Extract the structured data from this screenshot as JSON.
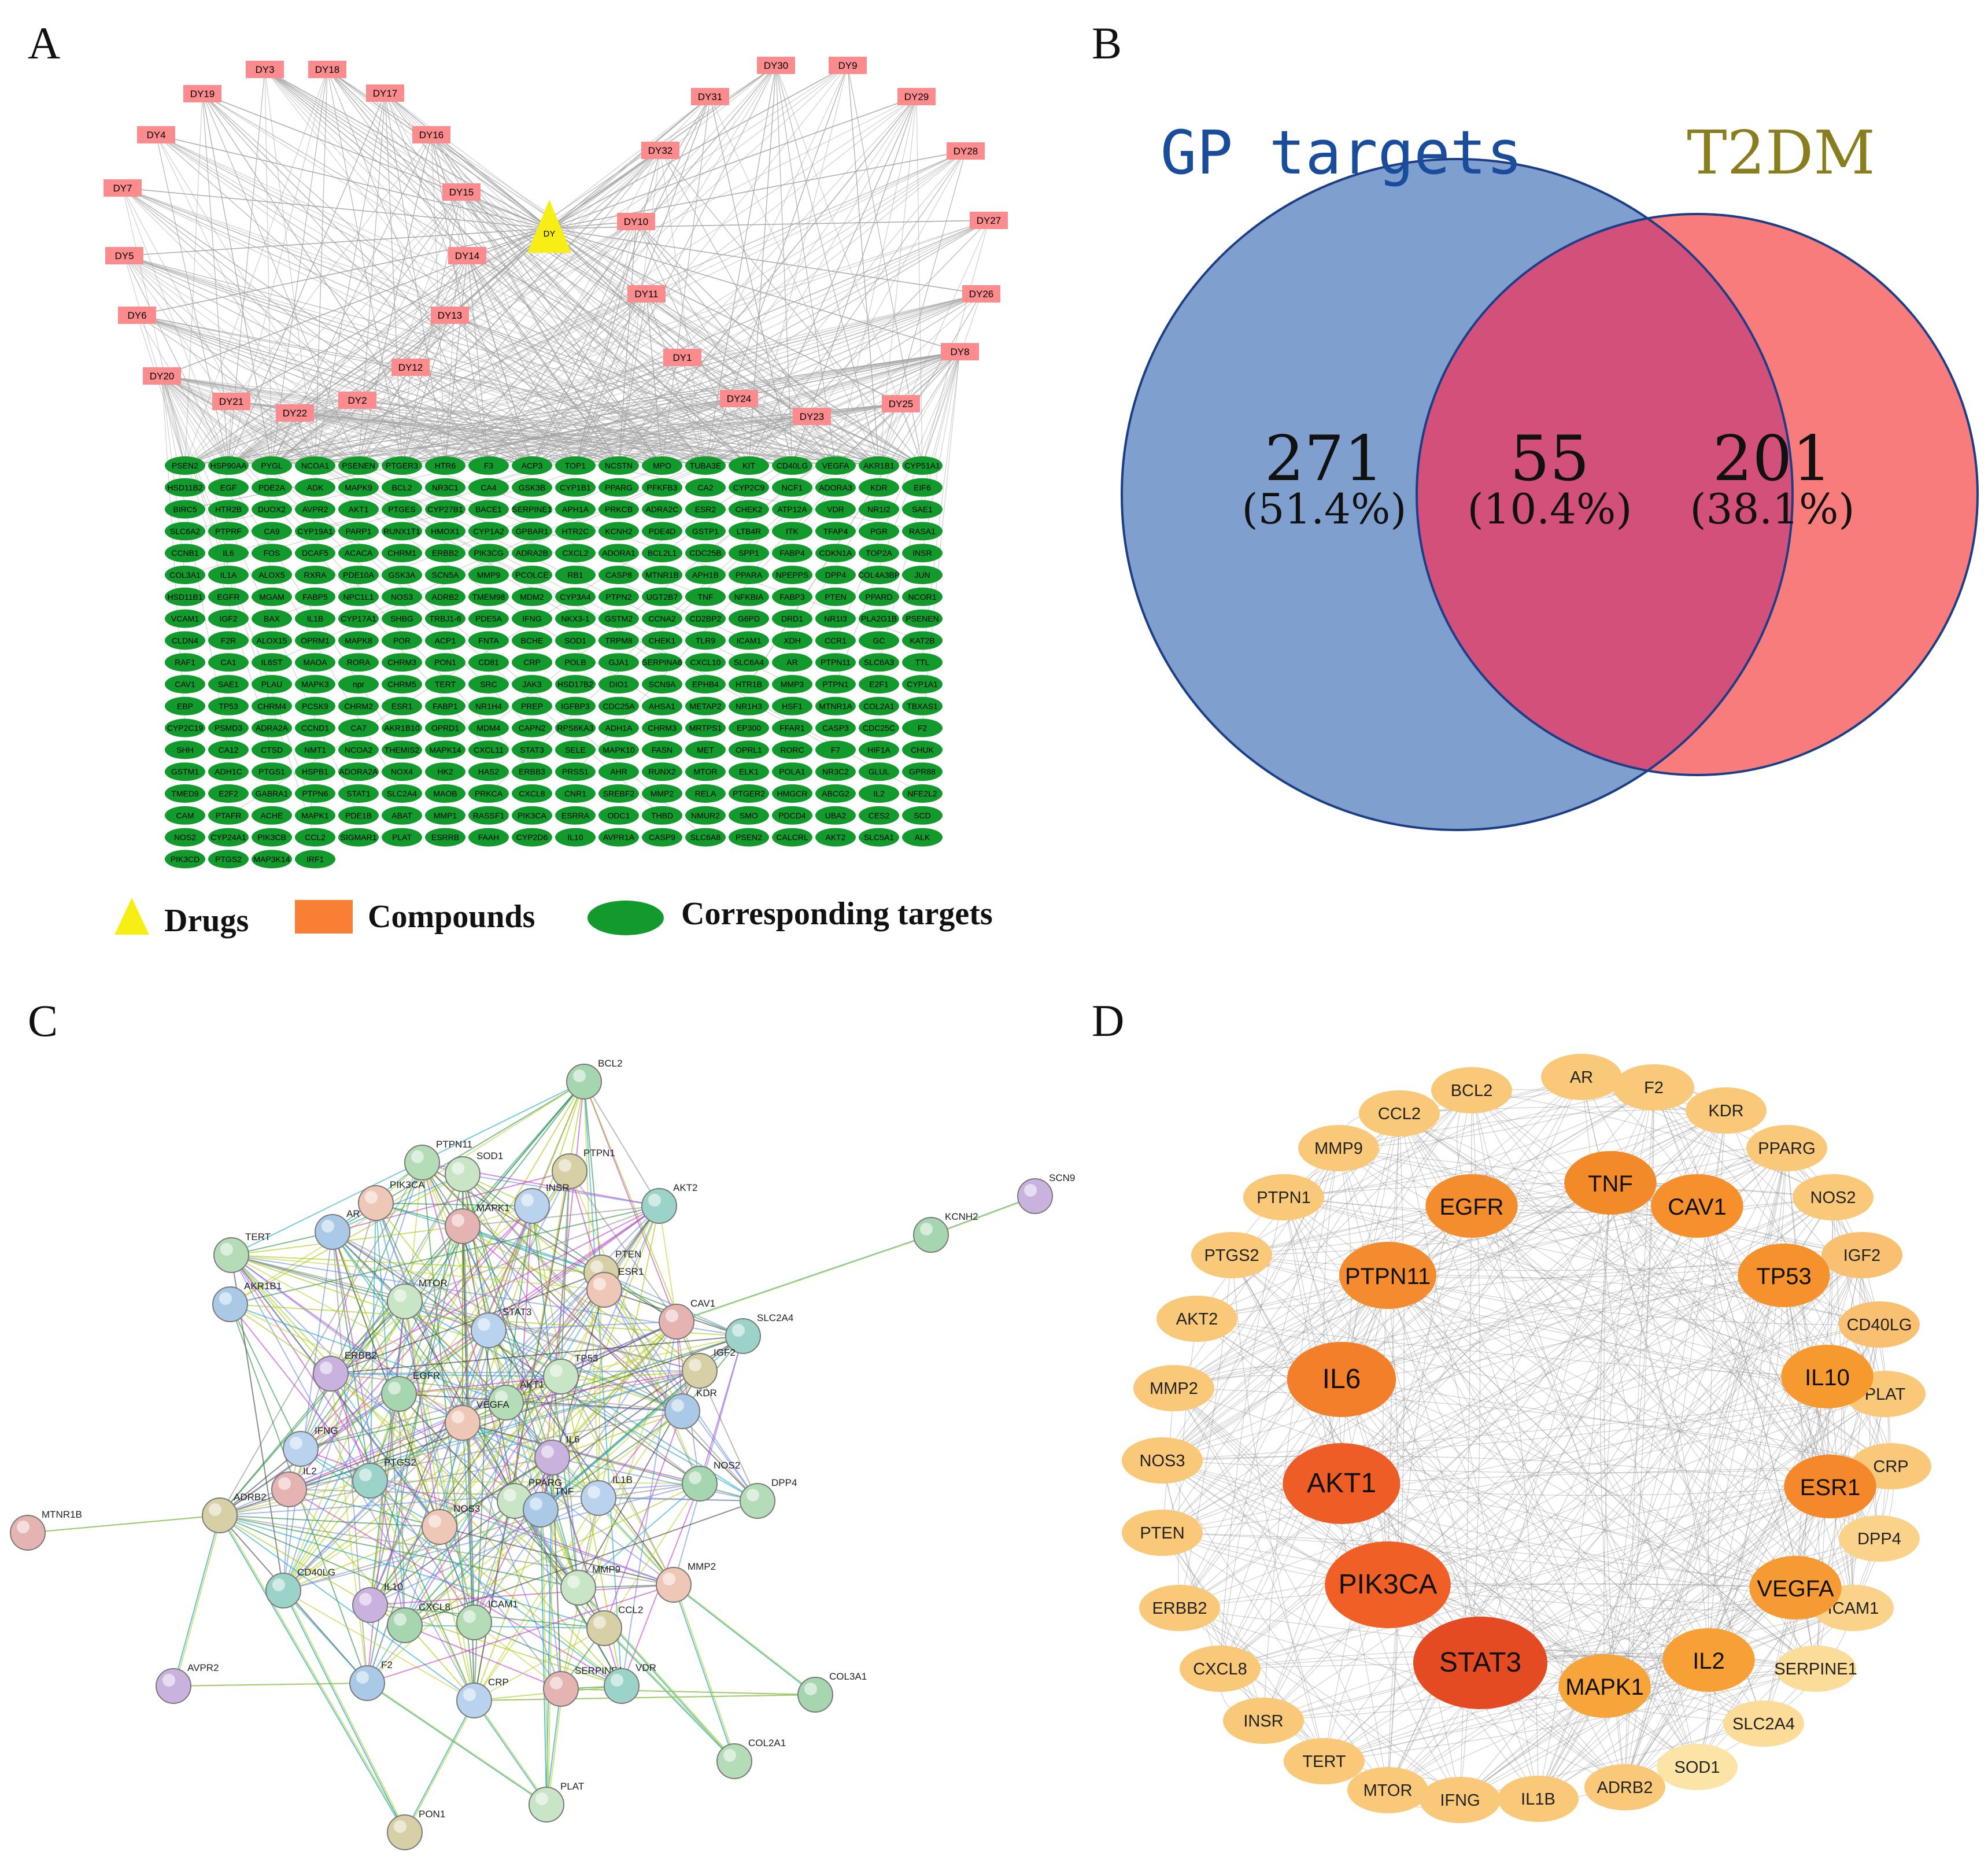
{
  "panels": {
    "a": "A",
    "b": "B",
    "c": "C",
    "d": "D"
  },
  "colors": {
    "drug": "#f7ee16",
    "compound": "#fb8b8c",
    "target": "#129a2d",
    "legend_compound": "#f97f35",
    "venn_left": "#7f9fcf",
    "venn_right": "#f97c7c",
    "venn_overlap": "#d2507a",
    "venn_left_title": "#1a4c9c",
    "venn_right_title": "#8a7d1e"
  },
  "network_a": {
    "drug_label": "DY",
    "compounds": [
      "DY19",
      "DY3",
      "DY18",
      "DY17",
      "DY16",
      "DY4",
      "DY7",
      "DY5",
      "DY6",
      "DY15",
      "DY14",
      "DY13",
      "DY12",
      "DY20",
      "DY21",
      "DY22",
      "DY2",
      "DY30",
      "DY9",
      "DY31",
      "DY29",
      "DY32",
      "DY28",
      "DY10",
      "DY27",
      "DY11",
      "DY26",
      "DY1",
      "DY8",
      "DY24",
      "DY23",
      "DY25"
    ],
    "targets": [
      [
        "PSEN2",
        "HSP90AA",
        "PYGL",
        "NCOA1",
        "PSENEN",
        "PTGER3",
        "HTR6",
        "F3",
        "ACP3",
        "TOP1",
        "NCSTN",
        "MPO",
        "TUBA3E",
        "KIT",
        "CD40LG",
        "VEGFA",
        "AKR1B1",
        "CYP51A1"
      ],
      [
        "HSD11B2",
        "EGF",
        "PDE2A",
        "ADK",
        "MAPK9",
        "BCL2",
        "NR3C1",
        "CA4",
        "GSK3B",
        "CYP1B1",
        "PPARG",
        "PFKFB3",
        "CA2",
        "CYP2C9",
        "NCF1",
        "ADORA3",
        "KDR",
        "EIF6"
      ],
      [
        "BIRC5",
        "HTR2B",
        "DUOX2",
        "AVPR2",
        "AKT1",
        "PTGES",
        "CYP27B1",
        "BACE1",
        "SERPINE1",
        "APH1A",
        "PRKCB",
        "ADRA2C",
        "ESR2",
        "CHEK2",
        "ATP12A",
        "VDR",
        "NR1I2",
        "SAE1"
      ],
      [
        "SLC6A2",
        "PTPRF",
        "CA9",
        "CYP19A1",
        "PARP1",
        "RUNX1T1",
        "HMOX1",
        "CYP1A2",
        "GPBAR1",
        "HTR2C",
        "KCNH2",
        "PDE4D",
        "GSTP1",
        "LTB4R",
        "ITK",
        "TFAP4",
        "PGR",
        "RASA1"
      ],
      [
        "CCNB1",
        "IL6",
        "FOS",
        "DCAF5",
        "ACACA",
        "CHRM1",
        "ERBB2",
        "PIK3CG",
        "ADRA2B",
        "CXCL2",
        "ADORA1",
        "BCL2L1",
        "CDC25B",
        "SPP1",
        "FABP4",
        "CDKN1A",
        "TOP2A",
        "INSR"
      ],
      [
        "COL3A1",
        "IL1A",
        "ALOX5",
        "RXRA",
        "PDE10A",
        "GSK3A",
        "SCN5A",
        "MMP9",
        "PCOLCE",
        "RB1",
        "CASP8",
        "MTNR1B",
        "APH1B",
        "PPARA",
        "NPEPPS",
        "DPP4",
        "COL4A3BP",
        "JUN"
      ],
      [
        "HSD11B1",
        "EGFR",
        "MGAM",
        "FABP5",
        "NPC1L1",
        "NOS3",
        "ADRB2",
        "TMEM98",
        "MDM2",
        "CYP3A4",
        "PTPN2",
        "UGT2B7",
        "TNF",
        "NFKBIA",
        "FABP3",
        "PTEN",
        "PPARD",
        "NCOR1"
      ],
      [
        "VCAM1",
        "IGF2",
        "BAX",
        "IL1B",
        "CYP17A1",
        "SHBG",
        "TRBJ1-6",
        "PDE5A",
        "IFNG",
        "NKX3-1",
        "GSTM2",
        "CCNA2",
        "CD2BP2",
        "G6PD",
        "DRD1",
        "NR1I3",
        "PLA2G1B",
        "PSENEN"
      ],
      [
        "CLDN4",
        "F2R",
        "ALOX15",
        "OPRM1",
        "MAPK8",
        "POR",
        "ACP1",
        "FNTA",
        "BCHE",
        "SOD1",
        "TRPM8",
        "CHEK1",
        "TLR9",
        "ICAM1",
        "XDH",
        "CCR1",
        "GC",
        "KAT2B"
      ],
      [
        "RAF1",
        "CA1",
        "IL6ST",
        "MAOA",
        "RORA",
        "CHRM3",
        "PON1",
        "CD81",
        "CRP",
        "POLB",
        "GJA1",
        "SERPINA6",
        "CXCL10",
        "SLC6A4",
        "AR",
        "PTPN11",
        "SLC6A3",
        "TTL"
      ],
      [
        "CAV1",
        "SAE1",
        "PLAU",
        "MAPK3",
        "npr",
        "CHRM5",
        "TERT",
        "SRC",
        "JAK3",
        "HSD17B2",
        "DIO1",
        "SCN9A",
        "EPHB4",
        "HTR1B",
        "MMP3",
        "PTPN1",
        "E2F1",
        "CYP1A1"
      ],
      [
        "EBP",
        "TP53",
        "CHRM4",
        "PCSK9",
        "CHRM2",
        "ESR1",
        "FABP1",
        "NR1H4",
        "PREP",
        "IGFBP3",
        "CDC25A",
        "AHSA1",
        "METAP2",
        "NR1H3",
        "HSF1",
        "MTNR1A",
        "COL2A1",
        "TBXAS1"
      ],
      [
        "CYP2C19",
        "PSMD3",
        "ADRA2A",
        "CCND1",
        "CA7",
        "AKR1B10",
        "OPRD1",
        "MDM4",
        "CAPN2",
        "RPS6KA3",
        "ADH1A",
        "CHRM3",
        "MRTPS1",
        "EP300",
        "FFAR1",
        "CASP3",
        "CDC25C",
        "F2"
      ],
      [
        "SHH",
        "CA12",
        "CTSD",
        "NMT1",
        "NCOA2",
        "THEMIS2",
        "MAPK14",
        "CXCL11",
        "STAT3",
        "SELE",
        "MAPK10",
        "FASN",
        "MET",
        "OPRL1",
        "RORC",
        "F7",
        "HIF1A",
        "CHUK"
      ],
      [
        "GSTM1",
        "ADH1C",
        "PTGS1",
        "HSPB1",
        "ADORA2A",
        "NOX4",
        "HK2",
        "HAS2",
        "ERBB3",
        "PRSS1",
        "AHR",
        "RUNX2",
        "MTOR",
        "ELK1",
        "POLA1",
        "NR3C2",
        "GLUL",
        "GPR88"
      ],
      [
        "TMED9",
        "E2F2",
        "GABRA1",
        "PTPN6",
        "STAT1",
        "SLC2A4",
        "MAOB",
        "PRKCA",
        "CXCL8",
        "CNR1",
        "SREBF2",
        "MMP2",
        "RELA",
        "PTGER2",
        "HMGCR",
        "ABCG2",
        "IL2",
        "NFE2L2"
      ],
      [
        "CAM",
        "PTAFR",
        "ACHE",
        "MAPK1",
        "PDE1B",
        "ABAT",
        "MMP1",
        "RASSF1",
        "PIK3CA",
        "ESRRA",
        "ODC1",
        "THBD",
        "NMUR2",
        "SMO",
        "PDCD4",
        "UBA2",
        "CES2",
        "SCD"
      ],
      [
        "NOS2",
        "CYP24A1",
        "PIK3CB",
        "CCL2",
        "SIGMAR1",
        "PLAT",
        "ESRRB",
        "FAAH",
        "CYP2D6",
        "IL10",
        "AVPR1A",
        "CASP9",
        "SLC6A8",
        "PSEN2",
        "CALCRL",
        "AKT2",
        "SLC5A1",
        "ALK"
      ],
      [
        "PIK3CD",
        "PTGS2",
        "MAP3K14",
        "IRF1"
      ]
    ],
    "legend": {
      "drugs": "Drugs",
      "compounds": "Compounds",
      "targets": "Corresponding targets"
    }
  },
  "venn_b": {
    "left_title": "GP targets",
    "right_title": "T2DM",
    "left_count": "271",
    "left_pct": "(51.4%)",
    "overlap_count": "55",
    "overlap_pct": "(10.4%)",
    "right_count": "201",
    "right_pct": "(38.1%)"
  },
  "network_c": {
    "nodes": [
      "BCL2",
      "PTPN11",
      "SOD1",
      "PTPN1",
      "PIK3CA",
      "AR",
      "INSR",
      "MAPK1",
      "AKT2",
      "SCN9",
      "KCNH2",
      "TERT",
      "MTOR",
      "PTEN",
      "ESR1",
      "AKR1B1",
      "STAT3",
      "CAV1",
      "SLC2A4",
      "ERBB2",
      "EGFR",
      "AKT1",
      "TP53",
      "IGF2",
      "VEGFA",
      "KDR",
      "IFNG",
      "IL2",
      "PTGS2",
      "IL6",
      "NOS2",
      "DPP4",
      "PPARG",
      "ADRB2",
      "NOS3",
      "TNF",
      "IL1B",
      "MTNR1B",
      "CD40LG",
      "IL10",
      "CXCL8",
      "ICAM1",
      "MMP9",
      "CCL2",
      "MMP2",
      "F2",
      "CRP",
      "SERPINE1",
      "VDR",
      "AVPR2",
      "COL3A1",
      "COL2A1",
      "PLAT",
      "PON1"
    ]
  },
  "network_d": {
    "outer": [
      "AR",
      "F2",
      "KDR",
      "PPARG",
      "NOS2",
      "IGF2",
      "CD40LG",
      "PLAT",
      "CRP",
      "DPP4",
      "ICAM1",
      "SERPINE1",
      "SLC2A4",
      "SOD1",
      "ADRB2",
      "IL1B",
      "IFNG",
      "MTOR",
      "TERT",
      "INSR",
      "CXCL8",
      "ERBB2",
      "PTEN",
      "NOS3",
      "MMP2",
      "AKT2",
      "PTGS2",
      "PTPN1",
      "MMP9",
      "CCL2",
      "BCL2"
    ],
    "inner": [
      "TNF",
      "CAV1",
      "TP53",
      "IL10",
      "ESR1",
      "VEGFA",
      "IL2",
      "MAPK1",
      "STAT3",
      "PIK3CA",
      "AKT1",
      "IL6",
      "PTPN11",
      "EGFR"
    ]
  }
}
